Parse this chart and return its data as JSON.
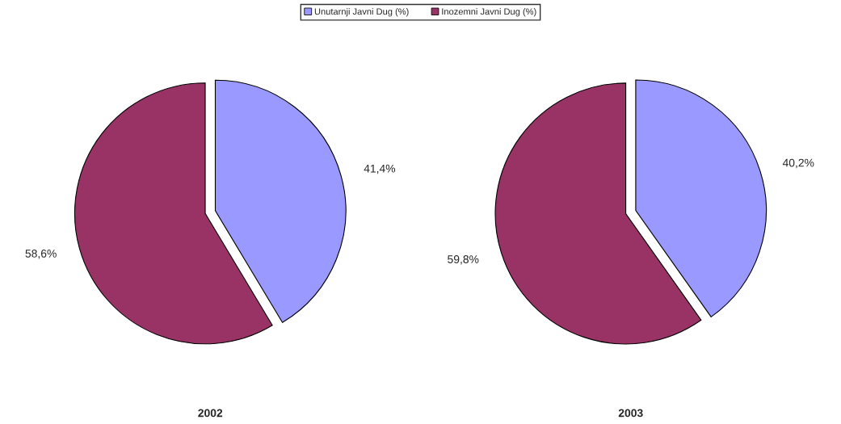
{
  "chart_data": [
    {
      "type": "pie",
      "title": "2002",
      "categories": [
        "Unutarnji Javni Dug (%)",
        "Inozemni Javni Dug (%)"
      ],
      "values": [
        41.4,
        58.6
      ],
      "colors": [
        "#9999ff",
        "#993366"
      ],
      "value_labels": [
        "41,4%",
        "58,6%"
      ],
      "legend": "top"
    },
    {
      "type": "pie",
      "title": "2003",
      "categories": [
        null,
        null
      ],
      "values": [
        40.2,
        59.8
      ],
      "colors": [
        "#9999ff",
        "#993366"
      ],
      "value_labels": [
        "40,2%",
        "59,8%"
      ]
    }
  ]
}
